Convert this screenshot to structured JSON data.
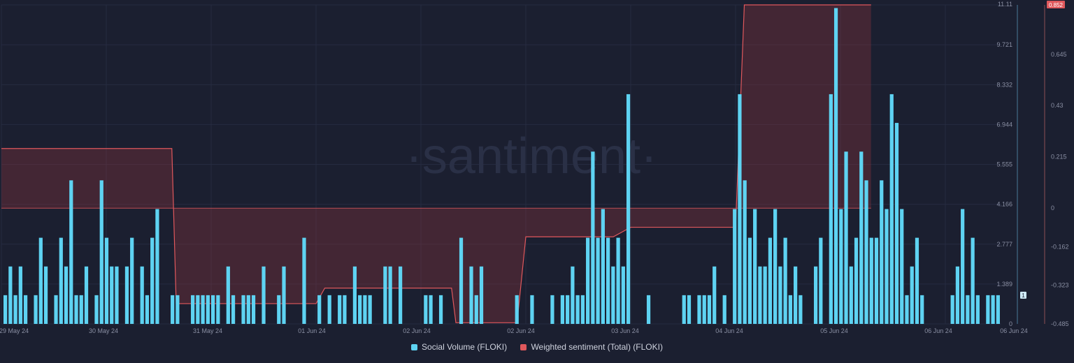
{
  "watermark": "·santiment·",
  "colors": {
    "background": "#1b1f30",
    "grid": "#262b40",
    "bar": "#5ed3f2",
    "bar_overlap": "#8fb7cf",
    "sentiment_line": "#e0585c",
    "sentiment_fill": "rgba(150,55,62,0.33)",
    "axis_text": "#8a8fa3",
    "right_axis_line": "#8e4f55",
    "left_axis_line": "#4a7a98"
  },
  "legend": [
    {
      "label": "Social Volume (FLOKI)",
      "color": "#5ed3f2"
    },
    {
      "label": "Weighted sentiment (Total) (FLOKI)",
      "color": "#e0585c"
    }
  ],
  "chart_data": {
    "type": "bar",
    "x_labels": [
      "29 May 24",
      "30 May 24",
      "31 May 24",
      "01 Jun 24",
      "02 Jun 24",
      "02 Jun 24",
      "03 Jun 24",
      "04 Jun 24",
      "05 Jun 24",
      "06 Jun 24",
      "06 Jun 24"
    ],
    "y_left": {
      "ticks": [
        "0",
        "1.389",
        "2.777",
        "4.166",
        "5.555",
        "6.944",
        "8.332",
        "9.721",
        "11.11"
      ],
      "range": [
        0,
        11.11
      ],
      "current_badge": "1"
    },
    "y_right": {
      "ticks": [
        "-0.485",
        "-0.323",
        "-0.162",
        "0",
        "0.215",
        "0.43",
        "0.645"
      ],
      "top_badge": "0.852",
      "range": [
        -0.485,
        0.852
      ]
    },
    "series": [
      {
        "name": "Social Volume (FLOKI)",
        "type": "bar",
        "values": [
          1,
          2,
          1,
          2,
          1,
          0,
          1,
          3,
          2,
          0,
          1,
          3,
          2,
          5,
          1,
          1,
          2,
          0,
          1,
          5,
          3,
          2,
          2,
          0,
          2,
          3,
          0,
          2,
          1,
          3,
          4,
          0,
          0,
          1,
          1,
          0,
          0,
          1,
          1,
          1,
          1,
          1,
          1,
          0,
          2,
          1,
          0,
          1,
          1,
          1,
          0,
          2,
          0,
          0,
          1,
          2,
          0,
          0,
          0,
          3,
          0,
          0,
          1,
          0,
          1,
          0,
          1,
          1,
          0,
          2,
          1,
          1,
          1,
          0,
          0,
          2,
          2,
          0,
          2,
          0,
          0,
          0,
          0,
          1,
          1,
          0,
          1,
          0,
          0,
          0,
          3,
          0,
          2,
          1,
          2,
          0,
          0,
          0,
          0,
          0,
          0,
          1,
          0,
          0,
          1,
          0,
          0,
          0,
          1,
          0,
          1,
          1,
          2,
          1,
          1,
          3,
          6,
          3,
          4,
          3,
          2,
          3,
          2,
          8,
          0,
          0,
          0,
          1,
          0,
          0,
          0,
          0,
          0,
          0,
          1,
          1,
          0,
          1,
          1,
          1,
          2,
          0,
          1,
          0,
          4,
          8,
          5,
          3,
          4,
          2,
          2,
          3,
          4,
          2,
          3,
          1,
          2,
          1,
          0,
          0,
          2,
          3,
          0,
          8,
          11,
          4,
          6,
          2,
          3,
          6,
          5,
          3,
          3,
          5,
          4,
          8,
          7,
          4,
          1,
          2,
          3,
          1,
          0,
          0,
          0,
          0,
          0,
          1,
          2,
          4,
          1,
          3,
          1,
          0,
          1,
          1,
          1
        ],
        "color": "#5ed3f2"
      },
      {
        "name": "Weighted sentiment (Total) (FLOKI)",
        "type": "area-step",
        "points": [
          [
            "29 May 24 00:00",
            0.25
          ],
          [
            "30 May 24 15:00",
            0.25
          ],
          [
            "30 May 24 16:00",
            -0.4
          ],
          [
            "01 Jun 24 00:00",
            -0.4
          ],
          [
            "01 Jun 24 02:00",
            -0.335
          ],
          [
            "02 Jun 24 07:00",
            -0.335
          ],
          [
            "02 Jun 24 08:00",
            -0.48
          ],
          [
            "02 Jun 24 22:00",
            -0.48
          ],
          [
            "03 Jun 24 00:00",
            -0.12
          ],
          [
            "03 Jun 24 20:00",
            -0.12
          ],
          [
            "04 Jun 24 00:00",
            -0.08
          ],
          [
            "05 Jun 24 00:00",
            -0.08
          ],
          [
            "05 Jun 24 02:00",
            0.852
          ],
          [
            "06 Jun 24 07:00",
            0.852
          ]
        ],
        "baseline": 0,
        "color": "#e0585c"
      }
    ]
  }
}
